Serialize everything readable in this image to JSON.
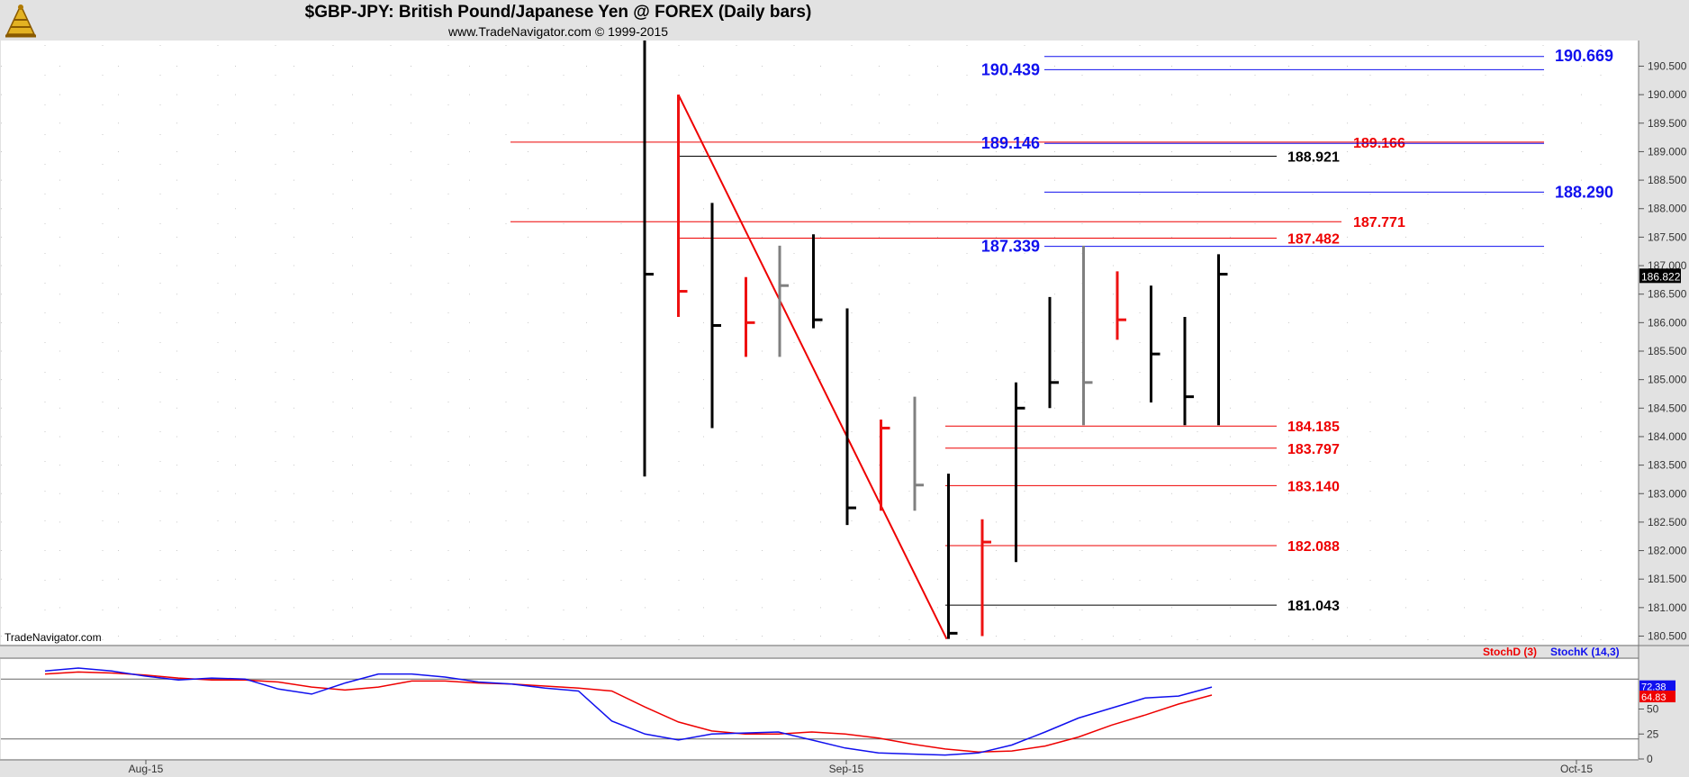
{
  "header": {
    "title": "$GBP-JPY:  British Pound/Japanese Yen @ FOREX  (Daily bars)",
    "subtitle": "www.TradeNavigator.com © 1999-2015"
  },
  "watermark": "TradeNavigator.com",
  "chart_data": {
    "type": "bar",
    "price": {
      "ylim": [
        180.35,
        190.95
      ],
      "ticks": [
        "180.500",
        "181.000",
        "181.500",
        "182.000",
        "182.500",
        "183.000",
        "183.500",
        "184.000",
        "184.500",
        "185.000",
        "185.500",
        "186.000",
        "186.500",
        "187.000",
        "187.500",
        "188.000",
        "188.500",
        "189.000",
        "189.500",
        "190.000",
        "190.500"
      ],
      "last_price": "186.822",
      "bars": [
        {
          "h": 190.95,
          "l": 183.3,
          "c": 186.85,
          "color": "black"
        },
        {
          "h": 190.0,
          "l": 186.1,
          "c": 186.55,
          "color": "red"
        },
        {
          "h": 188.1,
          "l": 184.15,
          "c": 185.95,
          "color": "black"
        },
        {
          "h": 186.8,
          "l": 185.4,
          "c": 186.0,
          "color": "red"
        },
        {
          "h": 187.35,
          "l": 185.4,
          "c": 186.65,
          "color": "gray"
        },
        {
          "h": 187.55,
          "l": 185.9,
          "c": 186.05,
          "color": "black"
        },
        {
          "h": 186.25,
          "l": 182.45,
          "c": 182.75,
          "color": "black"
        },
        {
          "h": 184.3,
          "l": 182.7,
          "c": 184.15,
          "color": "red"
        },
        {
          "h": 184.7,
          "l": 182.7,
          "c": 183.15,
          "color": "gray"
        },
        {
          "h": 183.35,
          "l": 180.45,
          "c": 180.55,
          "color": "black"
        },
        {
          "h": 182.55,
          "l": 180.5,
          "c": 182.15,
          "color": "red"
        },
        {
          "h": 184.95,
          "l": 181.8,
          "c": 184.5,
          "color": "black"
        },
        {
          "h": 186.45,
          "l": 184.5,
          "c": 184.95,
          "color": "black"
        },
        {
          "h": 187.35,
          "l": 184.2,
          "c": 184.95,
          "color": "gray"
        },
        {
          "h": 186.9,
          "l": 185.7,
          "c": 186.05,
          "color": "red"
        },
        {
          "h": 186.65,
          "l": 184.6,
          "c": 185.45,
          "color": "black"
        },
        {
          "h": 186.1,
          "l": 184.2,
          "c": 184.7,
          "color": "black"
        },
        {
          "h": 187.2,
          "l": 184.2,
          "c": 186.85,
          "color": "black"
        }
      ],
      "levels": [
        {
          "value": 190.669,
          "label": "190.669",
          "color": "#1010ee"
        },
        {
          "value": 190.439,
          "label": "190.439",
          "color": "#1010ee"
        },
        {
          "value": 189.166,
          "label": "189.166",
          "color": "#ee0000"
        },
        {
          "value": 189.146,
          "label": "189.146",
          "color": "#1010ee"
        },
        {
          "value": 188.921,
          "label": "188.921",
          "color": "#000000"
        },
        {
          "value": 188.29,
          "label": "188.290",
          "color": "#1010ee"
        },
        {
          "value": 187.771,
          "label": "187.771",
          "color": "#ee0000"
        },
        {
          "value": 187.482,
          "label": "187.482",
          "color": "#ee0000"
        },
        {
          "value": 187.339,
          "label": "187.339",
          "color": "#1010ee"
        },
        {
          "value": 184.185,
          "label": "184.185",
          "color": "#ee0000"
        },
        {
          "value": 183.797,
          "label": "183.797",
          "color": "#ee0000"
        },
        {
          "value": 183.14,
          "label": "183.140",
          "color": "#ee0000"
        },
        {
          "value": 182.088,
          "label": "182.088",
          "color": "#ee0000"
        },
        {
          "value": 181.043,
          "label": "181.043",
          "color": "#000000"
        }
      ],
      "trendline": {
        "from": 190.0,
        "to": 180.45
      }
    },
    "stochastic": {
      "ylim": [
        0,
        100
      ],
      "ticks": [
        "0",
        "25",
        "50"
      ],
      "legend": [
        {
          "name": "StochD (3)",
          "color": "#ee0000"
        },
        {
          "name": "StochK (14,3)",
          "color": "#1010ee"
        }
      ],
      "stochD_value": "64.83",
      "stochK_value": "72.38",
      "stochD": [
        85,
        87,
        86,
        84,
        81,
        79,
        79,
        77,
        72,
        69,
        72,
        78,
        78,
        76,
        75,
        73,
        71,
        68,
        52,
        37,
        28,
        25,
        25,
        27,
        25,
        21,
        15,
        10,
        7,
        8,
        13,
        22,
        34,
        44,
        55,
        64
      ],
      "stochK": [
        88,
        91,
        88,
        83,
        79,
        81,
        80,
        70,
        65,
        76,
        85,
        85,
        82,
        77,
        75,
        71,
        68,
        38,
        25,
        19,
        25,
        26,
        27,
        19,
        11,
        6,
        5,
        4,
        6,
        14,
        27,
        41,
        51,
        61,
        63,
        72
      ]
    },
    "x_axis": {
      "labels": [
        "Aug-15",
        "Sep-15",
        "Oct-15"
      ]
    }
  }
}
